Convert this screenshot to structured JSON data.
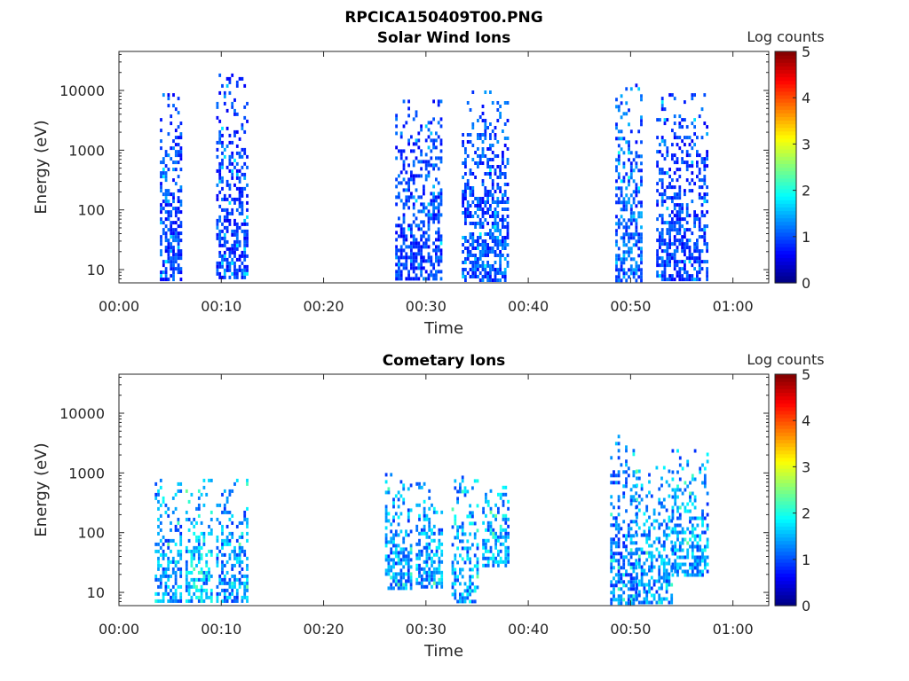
{
  "figure_title": "RPCICA150409T00.PNG",
  "chart_data": [
    {
      "type": "heatmap",
      "title": "Solar Wind Ions",
      "xlabel": "Time",
      "ylabel": "Energy (eV)",
      "x_ticks": [
        "00:00",
        "00:10",
        "00:20",
        "00:30",
        "00:40",
        "00:50",
        "01:00"
      ],
      "x_tick_minutes": [
        0,
        10,
        20,
        30,
        40,
        50,
        60
      ],
      "xlim_minutes": [
        0,
        63.5
      ],
      "y_scale": "log",
      "y_ticks": [
        "10",
        "100",
        "1000",
        "10000"
      ],
      "y_tick_values": [
        10,
        100,
        1000,
        10000
      ],
      "ylim": [
        6,
        45000
      ],
      "colorbar": {
        "label": "Log counts",
        "ticks": [
          "0",
          "1",
          "2",
          "3",
          "4",
          "5"
        ],
        "range": [
          0,
          5
        ],
        "colormap": "jet"
      },
      "bursts": [
        {
          "t_start": 4.0,
          "t_end": 6.0,
          "e_min": 7,
          "e_max": 9000,
          "level": 1.0
        },
        {
          "t_start": 9.5,
          "t_end": 12.5,
          "e_min": 7,
          "e_max": 22000,
          "level": 1.0
        },
        {
          "t_start": 27.0,
          "t_end": 31.5,
          "e_min": 7,
          "e_max": 7000,
          "level": 1.0
        },
        {
          "t_start": 33.5,
          "t_end": 38.0,
          "e_min": 7,
          "e_max": 10000,
          "level": 1.1
        },
        {
          "t_start": 48.5,
          "t_end": 51.0,
          "e_min": 7,
          "e_max": 13000,
          "level": 1.2
        },
        {
          "t_start": 52.5,
          "t_end": 57.5,
          "e_min": 7,
          "e_max": 9000,
          "level": 1.0
        }
      ],
      "grid": false
    },
    {
      "type": "heatmap",
      "title": "Cometary Ions",
      "xlabel": "Time",
      "ylabel": "Energy (eV)",
      "x_ticks": [
        "00:00",
        "00:10",
        "00:20",
        "00:30",
        "00:40",
        "00:50",
        "01:00"
      ],
      "x_tick_minutes": [
        0,
        10,
        20,
        30,
        40,
        50,
        60
      ],
      "xlim_minutes": [
        0,
        63.5
      ],
      "y_scale": "log",
      "y_ticks": [
        "10",
        "100",
        "1000",
        "10000"
      ],
      "y_tick_values": [
        10,
        100,
        1000,
        10000
      ],
      "ylim": [
        6,
        45000
      ],
      "colorbar": {
        "label": "Log counts",
        "ticks": [
          "0",
          "1",
          "2",
          "3",
          "4",
          "5"
        ],
        "range": [
          0,
          5
        ],
        "colormap": "jet"
      },
      "bursts": [
        {
          "t_start": 3.5,
          "t_end": 6.0,
          "e_min": 7,
          "e_max": 800,
          "level": 1.5
        },
        {
          "t_start": 6.5,
          "t_end": 9.0,
          "e_min": 7,
          "e_max": 800,
          "level": 1.7
        },
        {
          "t_start": 9.5,
          "t_end": 12.5,
          "e_min": 7,
          "e_max": 800,
          "level": 1.5
        },
        {
          "t_start": 26.0,
          "t_end": 28.5,
          "e_min": 12,
          "e_max": 1000,
          "level": 1.5
        },
        {
          "t_start": 29.0,
          "t_end": 31.5,
          "e_min": 12,
          "e_max": 700,
          "level": 1.5
        },
        {
          "t_start": 32.5,
          "t_end": 35.0,
          "e_min": 7,
          "e_max": 900,
          "level": 1.6
        },
        {
          "t_start": 35.5,
          "t_end": 38.0,
          "e_min": 30,
          "e_max": 700,
          "level": 1.6
        },
        {
          "t_start": 48.0,
          "t_end": 50.5,
          "e_min": 7,
          "e_max": 5000,
          "level": 1.3
        },
        {
          "t_start": 50.5,
          "t_end": 54.0,
          "e_min": 7,
          "e_max": 1500,
          "level": 1.5
        },
        {
          "t_start": 54.0,
          "t_end": 57.5,
          "e_min": 20,
          "e_max": 2500,
          "level": 1.5
        }
      ],
      "grid": false
    }
  ]
}
